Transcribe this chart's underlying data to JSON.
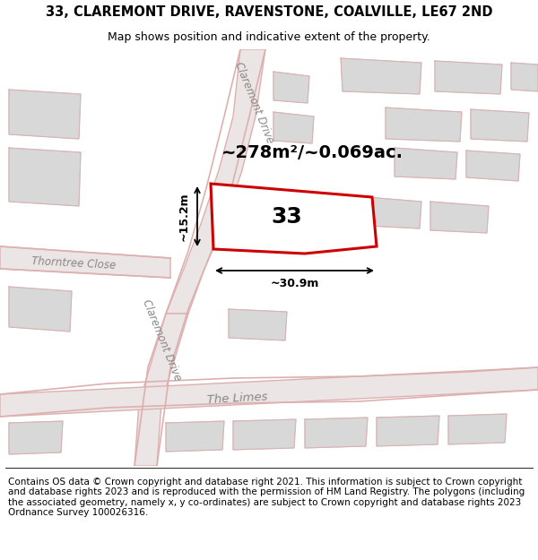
{
  "title": "33, CLAREMONT DRIVE, RAVENSTONE, COALVILLE, LE67 2ND",
  "subtitle": "Map shows position and indicative extent of the property.",
  "area_text": "~278m²/~0.069ac.",
  "label_33": "33",
  "dim_width": "~30.9m",
  "dim_height": "~15.2m",
  "road_label_claremont_top": "Claremont Drive",
  "road_label_claremont_bot": "Claremont Drive",
  "road_label_thorntree": "Thorntree Close",
  "road_label_limes": "The Limes",
  "footer_text": "Contains OS data © Crown copyright and database right 2021. This information is subject to Crown copyright and database rights 2023 and is reproduced with the permission of HM Land Registry. The polygons (including the associated geometry, namely x, y co-ordinates) are subject to Crown copyright and database rights 2023 Ordnance Survey 100026316.",
  "map_bg": "#f5f2f2",
  "road_fill": "#ece5e5",
  "road_edge": "#ddb0b0",
  "building_fill": "#d8d8d8",
  "building_edge": "#cccccc",
  "plot_color": "#cc0000",
  "title_fontsize": 10.5,
  "subtitle_fontsize": 9,
  "footer_fontsize": 7.5,
  "area_fontsize": 14,
  "label33_fontsize": 18,
  "dim_fontsize": 9,
  "road_label_fontsize": 8.5
}
